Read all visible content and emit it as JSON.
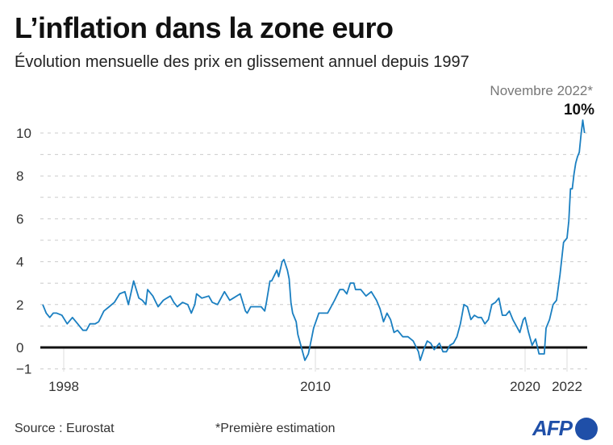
{
  "title": "L’inflation dans la zone euro",
  "subtitle": "Évolution mensuelle des prix en glissement annuel depuis 1997",
  "source": "Source : Eurostat",
  "note": "*Première estimation",
  "logo": "AFP",
  "chart_data": {
    "type": "line",
    "title": "L’inflation dans la zone euro",
    "xlabel": "",
    "ylabel": "",
    "ylim": [
      -1,
      10.8
    ],
    "xlim": [
      "1997-01",
      "2022-11"
    ],
    "y_ticks": [
      -1,
      0,
      2,
      4,
      6,
      8,
      10
    ],
    "x_ticks": [
      "1998",
      "2010",
      "2020",
      "2022"
    ],
    "grid": "dashed horizontal every 1",
    "zero_line": true,
    "line_color": "#1a7fc1",
    "annotation": {
      "label": "Novembre 2022*",
      "value_label": "10%"
    },
    "series": [
      {
        "points": [
          [
            "1997-01",
            2.0
          ],
          [
            "1997-03",
            1.6
          ],
          [
            "1997-05",
            1.4
          ],
          [
            "1997-07",
            1.6
          ],
          [
            "1997-09",
            1.6
          ],
          [
            "1997-12",
            1.5
          ],
          [
            "1998-03",
            1.1
          ],
          [
            "1998-06",
            1.4
          ],
          [
            "1998-09",
            1.1
          ],
          [
            "1998-12",
            0.8
          ],
          [
            "1999-02",
            0.8
          ],
          [
            "1999-04",
            1.1
          ],
          [
            "1999-07",
            1.1
          ],
          [
            "1999-09",
            1.2
          ],
          [
            "1999-12",
            1.7
          ],
          [
            "2000-03",
            1.9
          ],
          [
            "2000-06",
            2.1
          ],
          [
            "2000-09",
            2.5
          ],
          [
            "2000-12",
            2.6
          ],
          [
            "2001-02",
            2.0
          ],
          [
            "2001-05",
            3.1
          ],
          [
            "2001-08",
            2.3
          ],
          [
            "2001-10",
            2.2
          ],
          [
            "2001-12",
            2.0
          ],
          [
            "2002-01",
            2.7
          ],
          [
            "2002-04",
            2.4
          ],
          [
            "2002-07",
            1.9
          ],
          [
            "2002-10",
            2.2
          ],
          [
            "2002-12",
            2.3
          ],
          [
            "2003-02",
            2.4
          ],
          [
            "2003-04",
            2.1
          ],
          [
            "2003-06",
            1.9
          ],
          [
            "2003-09",
            2.1
          ],
          [
            "2003-12",
            2.0
          ],
          [
            "2004-02",
            1.6
          ],
          [
            "2004-04",
            2.0
          ],
          [
            "2004-05",
            2.5
          ],
          [
            "2004-08",
            2.3
          ],
          [
            "2004-12",
            2.4
          ],
          [
            "2005-02",
            2.1
          ],
          [
            "2005-05",
            2.0
          ],
          [
            "2005-09",
            2.6
          ],
          [
            "2005-12",
            2.2
          ],
          [
            "2006-02",
            2.3
          ],
          [
            "2006-06",
            2.5
          ],
          [
            "2006-09",
            1.7
          ],
          [
            "2006-10",
            1.6
          ],
          [
            "2006-12",
            1.9
          ],
          [
            "2007-03",
            1.9
          ],
          [
            "2007-06",
            1.9
          ],
          [
            "2007-08",
            1.7
          ],
          [
            "2007-09",
            2.1
          ],
          [
            "2007-11",
            3.1
          ],
          [
            "2007-12",
            3.1
          ],
          [
            "2008-03",
            3.6
          ],
          [
            "2008-04",
            3.3
          ],
          [
            "2008-06",
            4.0
          ],
          [
            "2008-07",
            4.1
          ],
          [
            "2008-09",
            3.6
          ],
          [
            "2008-10",
            3.2
          ],
          [
            "2008-11",
            2.1
          ],
          [
            "2008-12",
            1.6
          ],
          [
            "2009-02",
            1.2
          ],
          [
            "2009-03",
            0.6
          ],
          [
            "2009-05",
            0.0
          ],
          [
            "2009-07",
            -0.6
          ],
          [
            "2009-09",
            -0.3
          ],
          [
            "2009-11",
            0.5
          ],
          [
            "2009-12",
            0.9
          ],
          [
            "2010-03",
            1.6
          ],
          [
            "2010-05",
            1.6
          ],
          [
            "2010-08",
            1.6
          ],
          [
            "2010-10",
            1.9
          ],
          [
            "2010-12",
            2.2
          ],
          [
            "2011-03",
            2.7
          ],
          [
            "2011-05",
            2.7
          ],
          [
            "2011-07",
            2.5
          ],
          [
            "2011-09",
            3.0
          ],
          [
            "2011-11",
            3.0
          ],
          [
            "2011-12",
            2.7
          ],
          [
            "2012-03",
            2.7
          ],
          [
            "2012-06",
            2.4
          ],
          [
            "2012-09",
            2.6
          ],
          [
            "2012-12",
            2.2
          ],
          [
            "2013-02",
            1.8
          ],
          [
            "2013-04",
            1.2
          ],
          [
            "2013-06",
            1.6
          ],
          [
            "2013-08",
            1.3
          ],
          [
            "2013-10",
            0.7
          ],
          [
            "2013-12",
            0.8
          ],
          [
            "2014-03",
            0.5
          ],
          [
            "2014-06",
            0.5
          ],
          [
            "2014-09",
            0.3
          ],
          [
            "2014-12",
            -0.2
          ],
          [
            "2015-01",
            -0.6
          ],
          [
            "2015-03",
            -0.1
          ],
          [
            "2015-05",
            0.3
          ],
          [
            "2015-07",
            0.2
          ],
          [
            "2015-09",
            -0.1
          ],
          [
            "2015-11",
            0.1
          ],
          [
            "2015-12",
            0.2
          ],
          [
            "2016-02",
            -0.2
          ],
          [
            "2016-04",
            -0.2
          ],
          [
            "2016-06",
            0.1
          ],
          [
            "2016-08",
            0.2
          ],
          [
            "2016-10",
            0.5
          ],
          [
            "2016-12",
            1.1
          ],
          [
            "2017-02",
            2.0
          ],
          [
            "2017-04",
            1.9
          ],
          [
            "2017-06",
            1.3
          ],
          [
            "2017-08",
            1.5
          ],
          [
            "2017-10",
            1.4
          ],
          [
            "2017-12",
            1.4
          ],
          [
            "2018-02",
            1.1
          ],
          [
            "2018-04",
            1.3
          ],
          [
            "2018-06",
            2.0
          ],
          [
            "2018-08",
            2.1
          ],
          [
            "2018-10",
            2.3
          ],
          [
            "2018-12",
            1.5
          ],
          [
            "2019-02",
            1.5
          ],
          [
            "2019-04",
            1.7
          ],
          [
            "2019-06",
            1.3
          ],
          [
            "2019-08",
            1.0
          ],
          [
            "2019-10",
            0.7
          ],
          [
            "2019-12",
            1.3
          ],
          [
            "2020-01",
            1.4
          ],
          [
            "2020-03",
            0.7
          ],
          [
            "2020-05",
            0.1
          ],
          [
            "2020-07",
            0.4
          ],
          [
            "2020-09",
            -0.3
          ],
          [
            "2020-12",
            -0.3
          ],
          [
            "2021-01",
            0.9
          ],
          [
            "2021-03",
            1.3
          ],
          [
            "2021-05",
            2.0
          ],
          [
            "2021-07",
            2.2
          ],
          [
            "2021-09",
            3.4
          ],
          [
            "2021-11",
            4.9
          ],
          [
            "2021-12",
            5.0
          ],
          [
            "2022-01",
            5.1
          ],
          [
            "2022-02",
            5.9
          ],
          [
            "2022-03",
            7.4
          ],
          [
            "2022-04",
            7.4
          ],
          [
            "2022-05",
            8.1
          ],
          [
            "2022-06",
            8.6
          ],
          [
            "2022-07",
            8.9
          ],
          [
            "2022-08",
            9.1
          ],
          [
            "2022-09",
            9.9
          ],
          [
            "2022-10",
            10.6
          ],
          [
            "2022-11",
            10.0
          ]
        ]
      }
    ]
  }
}
